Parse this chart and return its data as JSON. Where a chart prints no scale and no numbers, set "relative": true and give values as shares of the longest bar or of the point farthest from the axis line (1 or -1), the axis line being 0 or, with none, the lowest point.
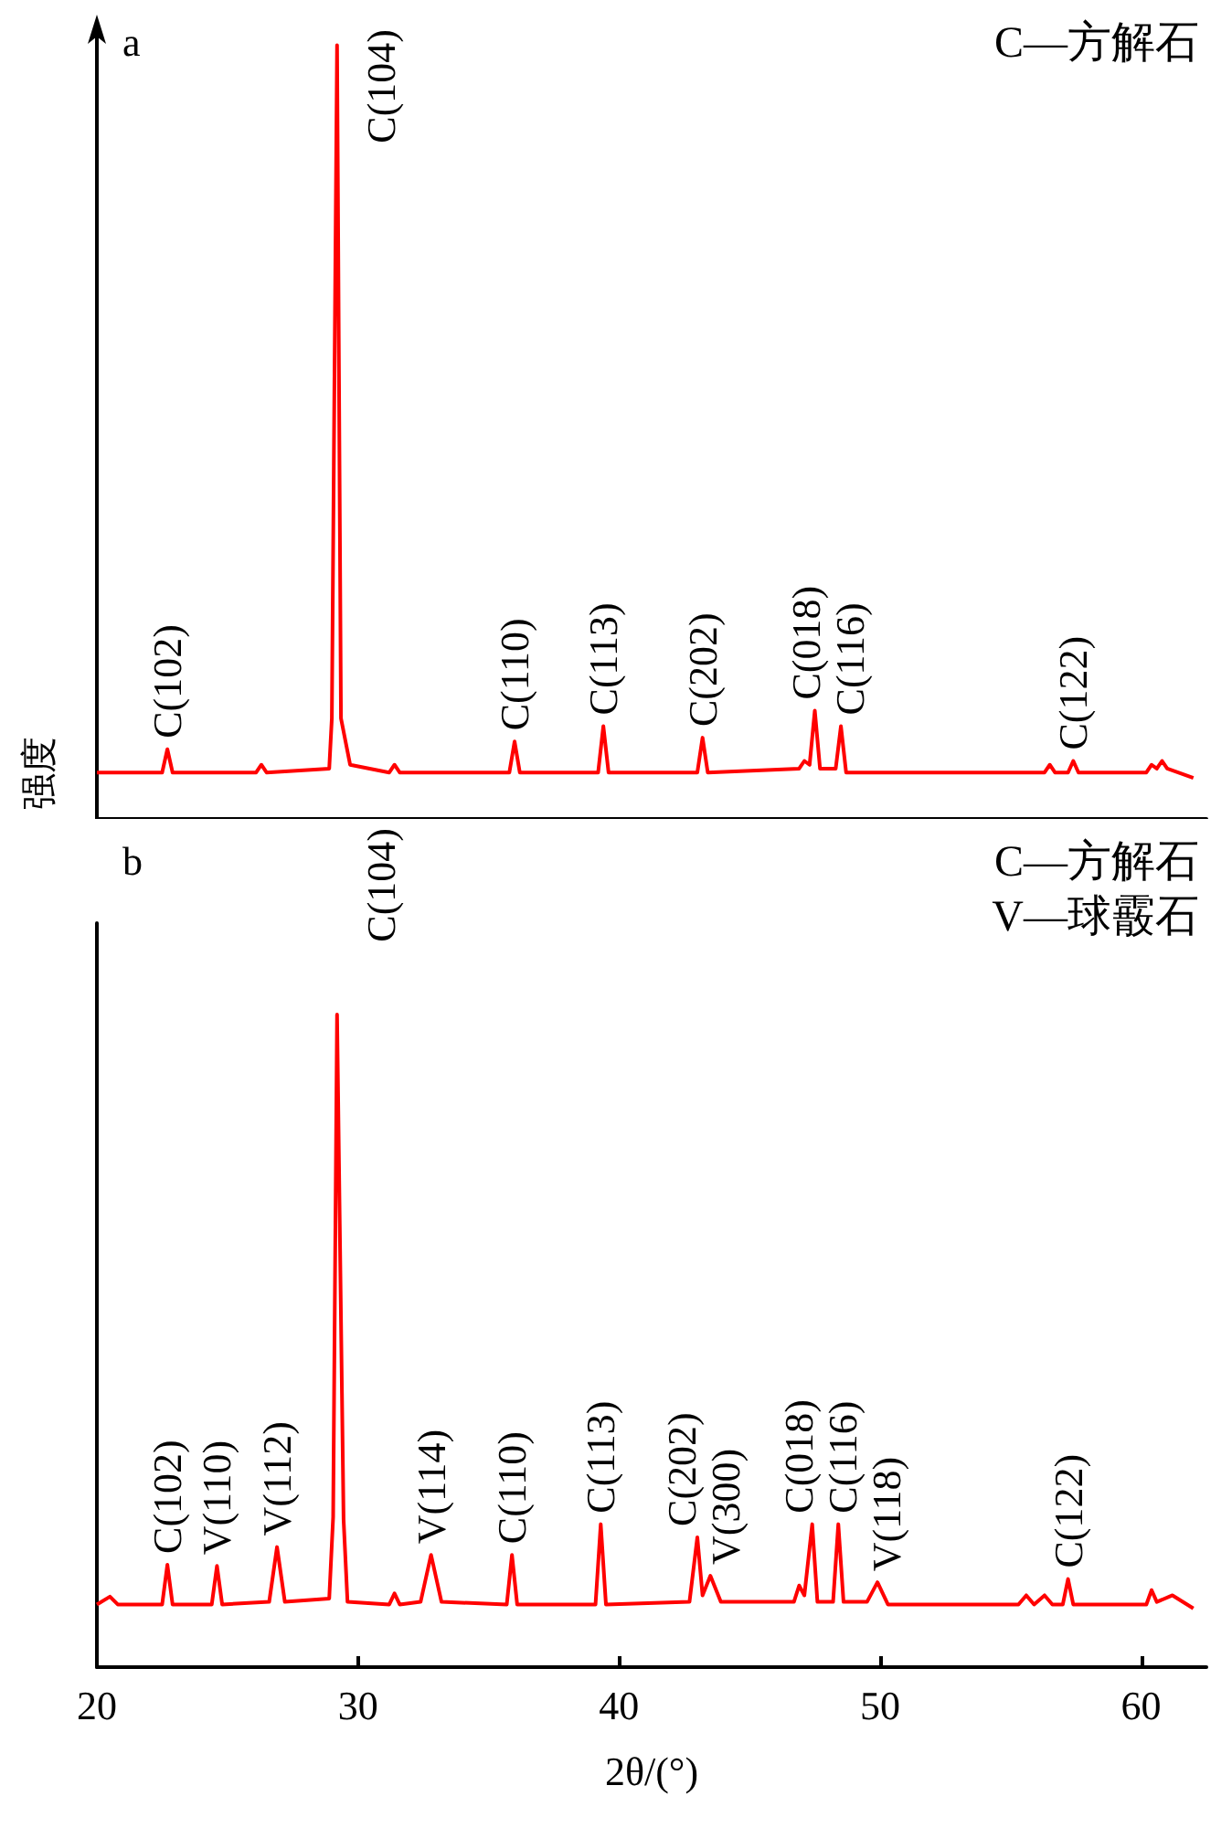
{
  "chart_data": [
    {
      "type": "line",
      "relative": true,
      "ylabel": "强度",
      "grid": false,
      "marker": "none",
      "line_style": "solid",
      "tick_labels": false,
      "xlim": [
        20,
        62.5
      ],
      "xticks": [
        20,
        30,
        40,
        50,
        60
      ],
      "annotations": [
        "a",
        "C—方解石",
        {
          "text": "C(102)",
          "x": 22.7,
          "y": 0.09
        },
        {
          "text": "C(104)",
          "x": 29.2,
          "y": 1.0
        },
        {
          "text": "C(110)",
          "x": 36.0,
          "y": 0.1
        },
        {
          "text": "C(113)",
          "x": 39.4,
          "y": 0.12
        },
        {
          "text": "C(202)",
          "x": 43.2,
          "y": 0.105
        },
        {
          "text": "C(018)",
          "x": 47.5,
          "y": 0.14
        },
        {
          "text": "C(116)",
          "x": 48.5,
          "y": 0.12
        },
        {
          "text": "C(122)",
          "x": 57.4,
          "y": 0.075
        }
      ],
      "series": [
        {
          "color": "#ff0000",
          "x": [
            20.0,
            22.5,
            22.7,
            22.9,
            26.1,
            26.3,
            26.5,
            28.9,
            29.0,
            29.2,
            29.35,
            29.7,
            31.2,
            31.4,
            31.6,
            35.8,
            36.0,
            36.2,
            39.2,
            39.4,
            39.6,
            43.0,
            43.2,
            43.4,
            46.9,
            47.1,
            47.3,
            47.5,
            47.7,
            48.3,
            48.5,
            48.7,
            56.3,
            56.5,
            56.7,
            57.2,
            57.4,
            57.6,
            60.2,
            60.4,
            60.6,
            60.8,
            61.0,
            62.0
          ],
          "values": [
            0.06,
            0.06,
            0.09,
            0.06,
            0.06,
            0.07,
            0.06,
            0.065,
            0.13,
            1.0,
            0.13,
            0.07,
            0.06,
            0.07,
            0.06,
            0.06,
            0.1,
            0.06,
            0.06,
            0.12,
            0.06,
            0.06,
            0.105,
            0.06,
            0.065,
            0.075,
            0.07,
            0.14,
            0.065,
            0.065,
            0.12,
            0.06,
            0.06,
            0.07,
            0.06,
            0.06,
            0.075,
            0.06,
            0.06,
            0.07,
            0.065,
            0.075,
            0.065,
            0.053
          ]
        }
      ]
    },
    {
      "type": "line",
      "relative": true,
      "xlabel": "2θ/(°)",
      "grid": false,
      "marker": "none",
      "line_style": "solid",
      "tick_labels": "x",
      "xlim": [
        20,
        62.5
      ],
      "xticks": [
        20,
        30,
        40,
        50,
        60
      ],
      "annotations": [
        "b",
        "C—方解石",
        "V—球霰石",
        {
          "text": "C(102)",
          "x": 22.7,
          "y": 0.157
        },
        {
          "text": "V(110)",
          "x": 24.6,
          "y": 0.155
        },
        {
          "text": "V(112)",
          "x": 26.9,
          "y": 0.184
        },
        {
          "text": "C(104)",
          "x": 29.2,
          "y": 1.0
        },
        {
          "text": "V(114)",
          "x": 32.8,
          "y": 0.172
        },
        {
          "text": "C(110)",
          "x": 35.9,
          "y": 0.172
        },
        {
          "text": "C(113)",
          "x": 39.3,
          "y": 0.219
        },
        {
          "text": "C(202)",
          "x": 43.0,
          "y": 0.199
        },
        {
          "text": "V(300)",
          "x": 43.5,
          "y": 0.14
        },
        {
          "text": "C(018)",
          "x": 47.4,
          "y": 0.219
        },
        {
          "text": "C(116)",
          "x": 48.4,
          "y": 0.219
        },
        {
          "text": "V(118)",
          "x": 49.9,
          "y": 0.13
        },
        {
          "text": "C(122)",
          "x": 57.2,
          "y": 0.135
        }
      ],
      "series": [
        {
          "color": "#ff0000",
          "x": [
            20.0,
            20.5,
            20.8,
            22.5,
            22.7,
            22.9,
            24.4,
            24.6,
            24.8,
            26.6,
            26.9,
            27.2,
            28.9,
            29.05,
            29.2,
            29.45,
            29.6,
            31.2,
            31.4,
            31.6,
            32.4,
            32.8,
            33.2,
            35.7,
            35.9,
            36.1,
            39.1,
            39.3,
            39.5,
            42.7,
            43.0,
            43.2,
            43.5,
            43.9,
            46.7,
            46.9,
            47.1,
            47.4,
            47.6,
            48.2,
            48.4,
            48.6,
            49.5,
            49.9,
            50.3,
            55.3,
            55.6,
            55.9,
            56.3,
            56.6,
            57.0,
            57.2,
            57.4,
            60.2,
            60.4,
            60.6,
            61.2,
            62.0
          ],
          "values": [
            0.096,
            0.108,
            0.096,
            0.096,
            0.157,
            0.096,
            0.096,
            0.155,
            0.096,
            0.1,
            0.184,
            0.1,
            0.105,
            0.23,
            1.0,
            0.226,
            0.1,
            0.096,
            0.113,
            0.096,
            0.1,
            0.172,
            0.1,
            0.096,
            0.172,
            0.096,
            0.096,
            0.219,
            0.096,
            0.1,
            0.199,
            0.11,
            0.14,
            0.1,
            0.1,
            0.125,
            0.11,
            0.219,
            0.1,
            0.1,
            0.219,
            0.1,
            0.1,
            0.13,
            0.096,
            0.096,
            0.11,
            0.096,
            0.11,
            0.096,
            0.096,
            0.135,
            0.096,
            0.096,
            0.118,
            0.1,
            0.11,
            0.09
          ]
        }
      ]
    }
  ]
}
